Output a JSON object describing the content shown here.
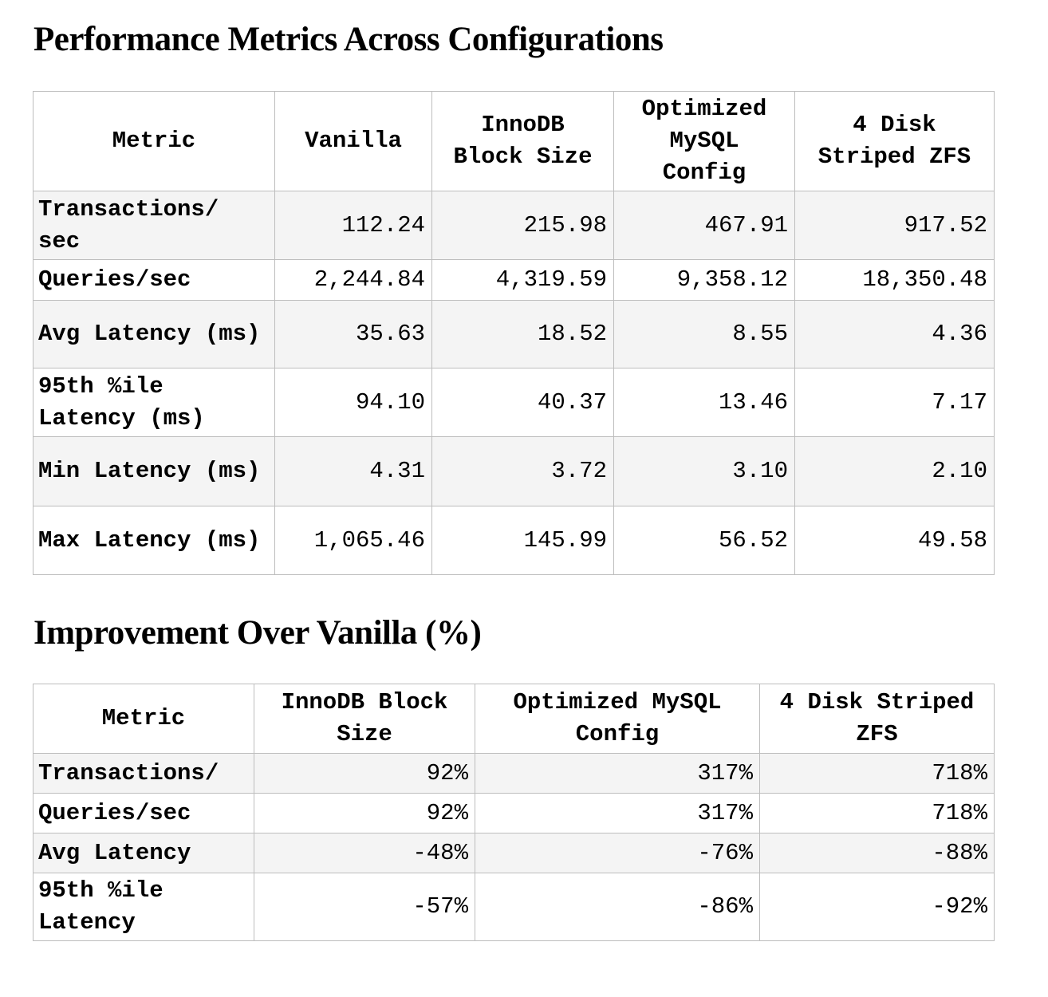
{
  "table1": {
    "title": "Performance Metrics Across Configurations",
    "headers": [
      "Metric",
      "Vanilla",
      "InnoDB Block Size",
      "Optimized MySQL Config",
      "4 Disk Striped ZFS"
    ],
    "rows": [
      {
        "metric": "Transactions/ sec",
        "values": [
          "112.24",
          "215.98",
          "467.91",
          "917.52"
        ]
      },
      {
        "metric": "Queries/sec",
        "values": [
          "2,244.84",
          "4,319.59",
          "9,358.12",
          "18,350.48"
        ]
      },
      {
        "metric": "Avg Latency (ms)",
        "values": [
          "35.63",
          "18.52",
          "8.55",
          "4.36"
        ]
      },
      {
        "metric": "95th %ile Latency (ms)",
        "values": [
          "94.10",
          "40.37",
          "13.46",
          "7.17"
        ]
      },
      {
        "metric": "Min Latency (ms)",
        "values": [
          "4.31",
          "3.72",
          "3.10",
          "2.10"
        ]
      },
      {
        "metric": "Max Latency (ms)",
        "values": [
          "1,065.46",
          "145.99",
          "56.52",
          "49.58"
        ]
      }
    ]
  },
  "table2": {
    "title": "Improvement Over Vanilla (%)",
    "headers": [
      "Metric",
      "InnoDB Block Size",
      "Optimized MySQL Config",
      "4 Disk Striped ZFS"
    ],
    "rows": [
      {
        "metric": "Transactions/",
        "values": [
          "92%",
          "317%",
          "718%"
        ]
      },
      {
        "metric": "Queries/sec",
        "values": [
          "92%",
          "317%",
          "718%"
        ]
      },
      {
        "metric": "Avg Latency",
        "values": [
          "-48%",
          "-76%",
          "-88%"
        ]
      },
      {
        "metric": "95th %ile Latency",
        "values": [
          "-57%",
          "-86%",
          "-92%"
        ]
      }
    ]
  }
}
